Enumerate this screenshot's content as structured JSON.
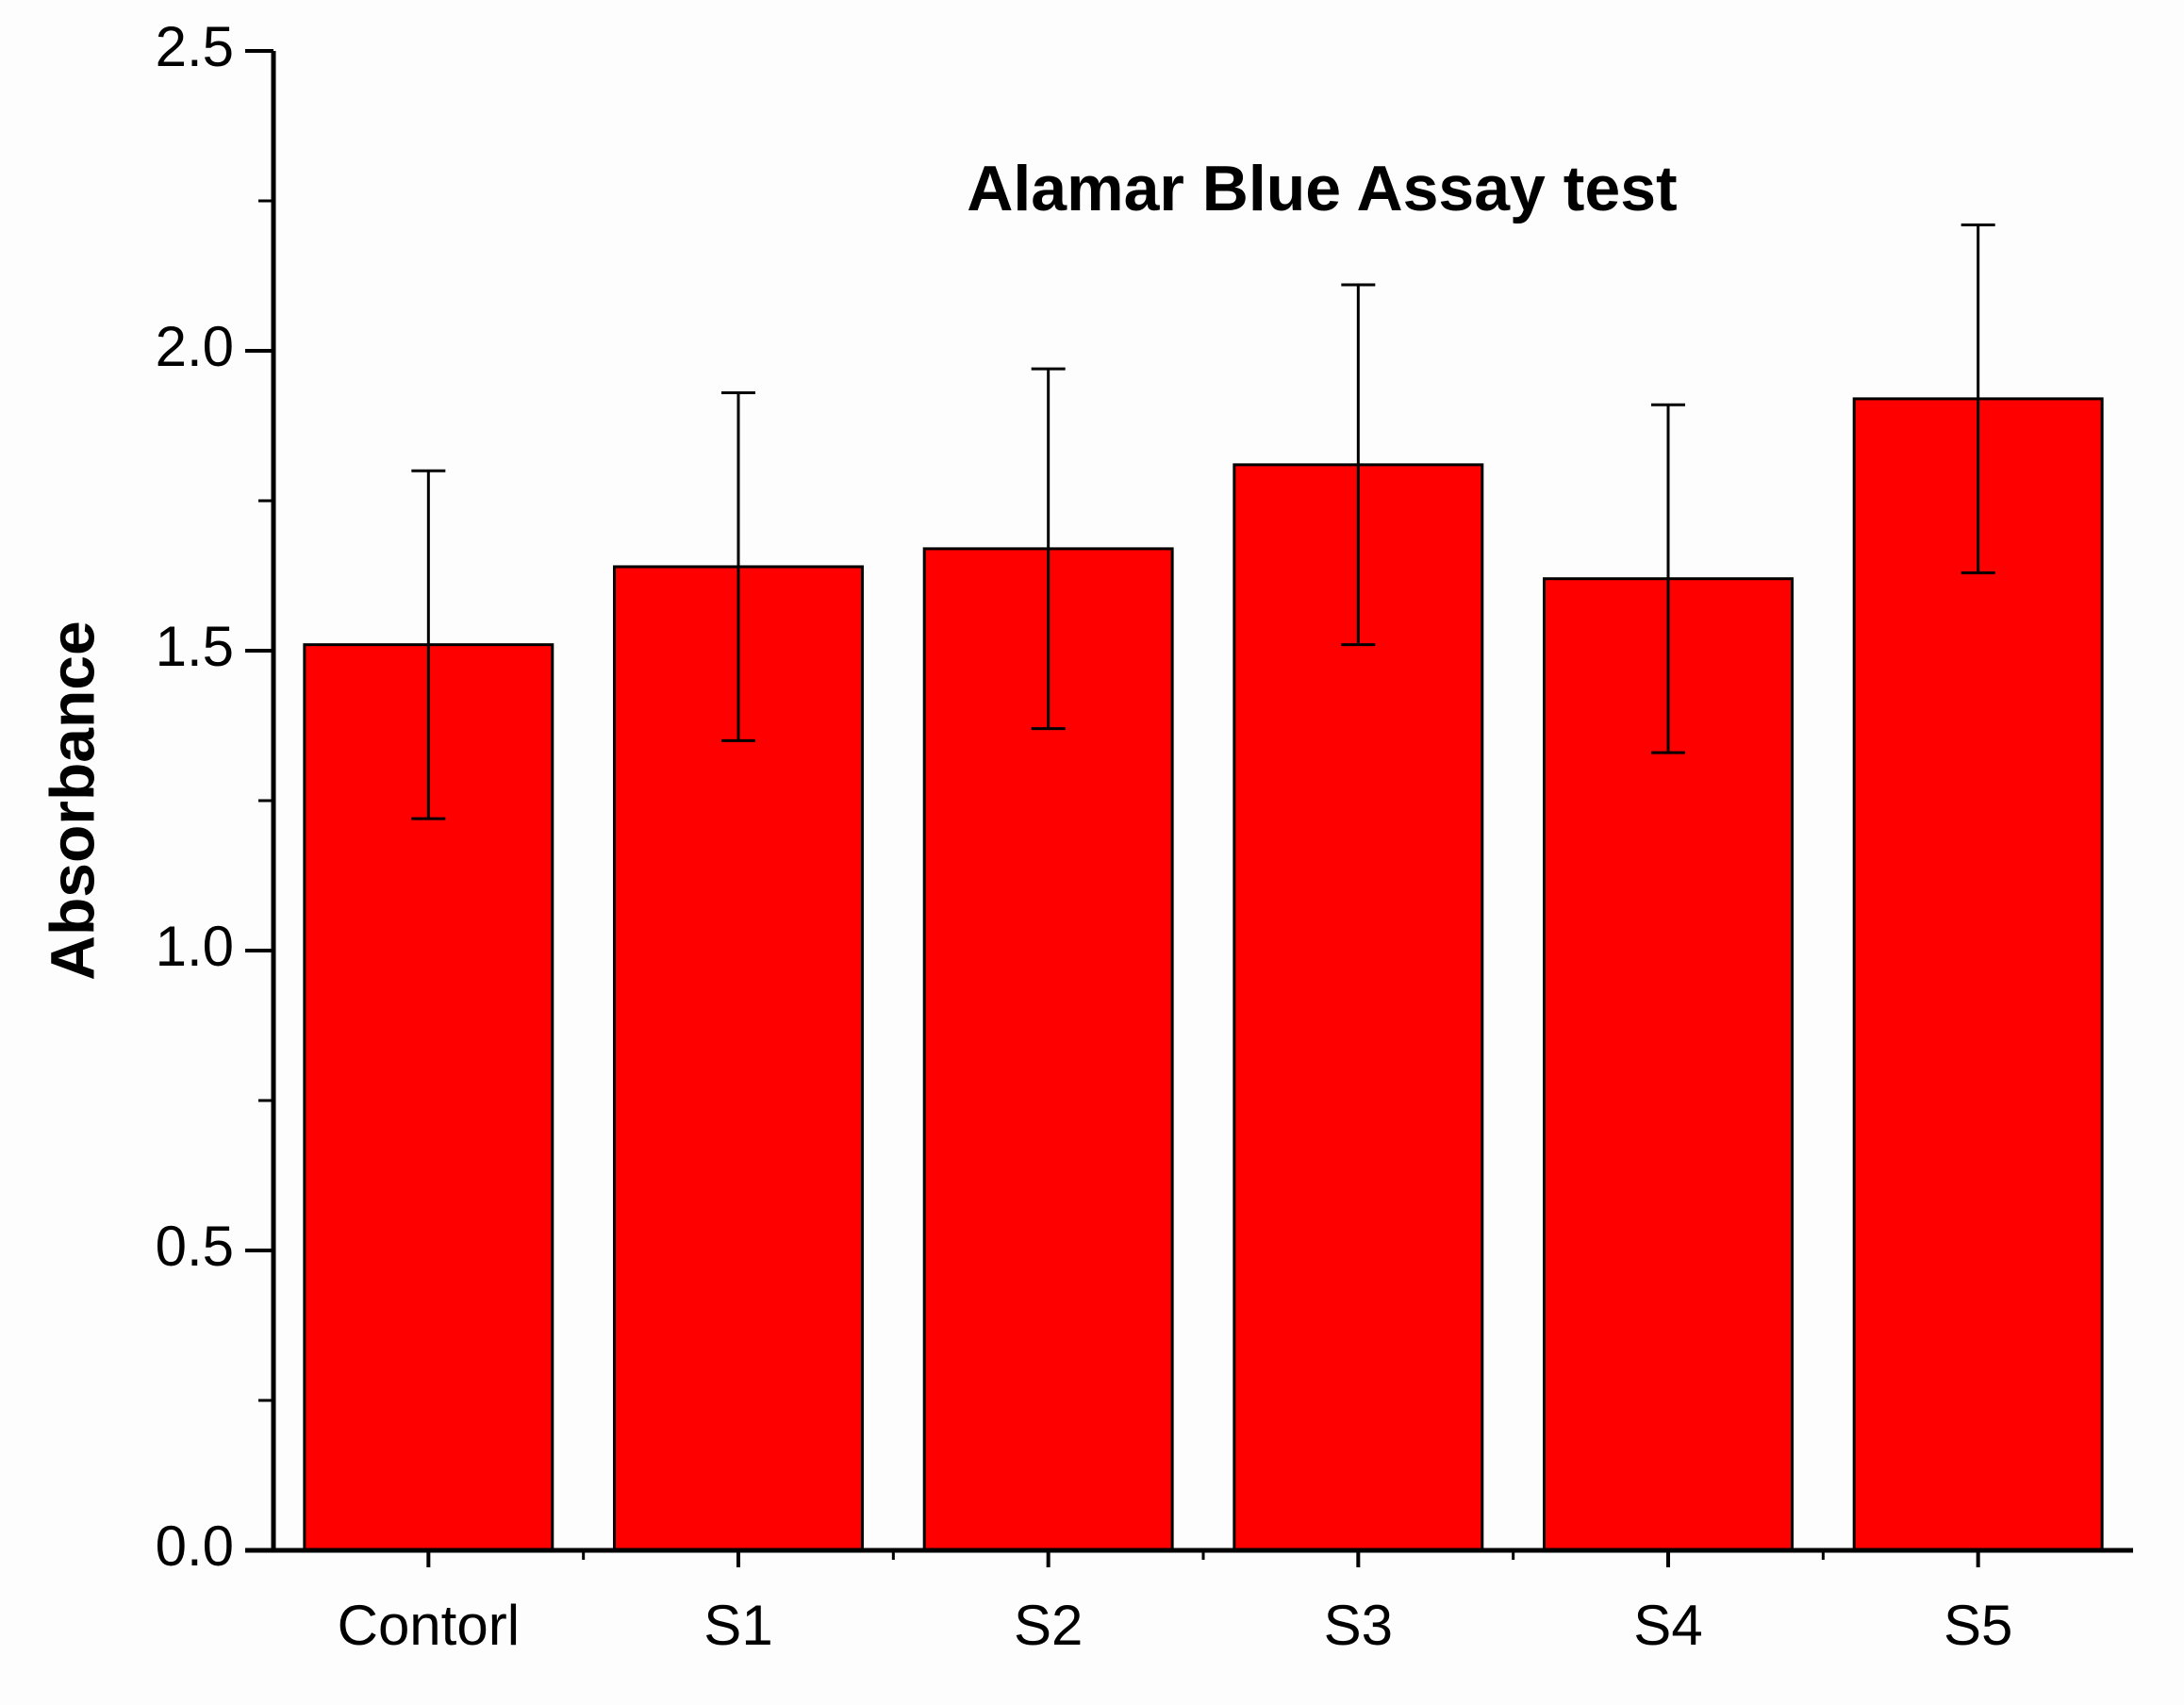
{
  "chart_data": {
    "type": "bar",
    "title": "Alamar Blue Assay test",
    "y_label": "Absorbance",
    "categories": [
      "Contorl",
      "S1",
      "S2",
      "S3",
      "S4",
      "S5"
    ],
    "values": [
      1.51,
      1.64,
      1.67,
      1.81,
      1.62,
      1.92
    ],
    "errors": [
      0.29,
      0.29,
      0.3,
      0.3,
      0.29,
      0.29
    ],
    "color": "#ff0000",
    "ylim": [
      0,
      2.5
    ],
    "yticks": [
      {
        "value": 0,
        "label": "0.0"
      },
      0.5,
      {
        "value": 1,
        "label": "1.0"
      },
      1.5,
      {
        "value": 2,
        "label": "2.0"
      },
      2.5
    ],
    "yminorticks": [
      0.25,
      0.75,
      1.25,
      1.75,
      2.25
    ]
  }
}
